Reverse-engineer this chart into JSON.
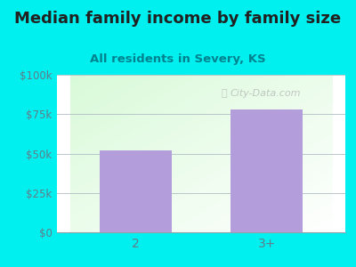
{
  "title": "Median family income by family size",
  "subtitle": "All residents in Severy, KS",
  "categories": [
    "2",
    "3+"
  ],
  "values": [
    52000,
    78000
  ],
  "bar_color": "#b39ddb",
  "outer_bg": "#00efef",
  "plot_bg_topleft": "#e8f5e9",
  "plot_bg_topright": "#f5f5f5",
  "plot_bg_bottomleft": "#c8e6c9",
  "plot_bg_bottomright": "#ffffff",
  "title_color": "#212121",
  "subtitle_color": "#00838f",
  "tick_color": "#607d8b",
  "grid_color": "#b0bec5",
  "ylim": [
    0,
    100000
  ],
  "yticks": [
    0,
    25000,
    50000,
    75000,
    100000
  ],
  "ytick_labels": [
    "$0",
    "$25k",
    "$50k",
    "$75k",
    "$100k"
  ],
  "title_fontsize": 13,
  "subtitle_fontsize": 9.5,
  "watermark": "City-Data.com",
  "watermark_color": "#aaaaaa"
}
